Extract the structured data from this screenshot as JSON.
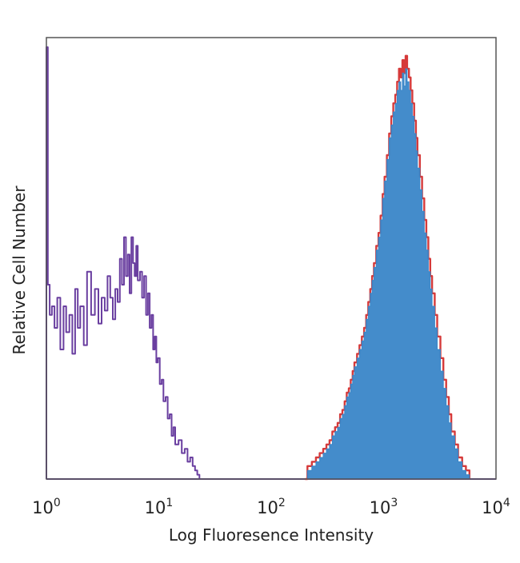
{
  "chart_data": {
    "type": "area",
    "xscale": "log",
    "xlim": [
      1,
      10000
    ],
    "ylim": [
      0,
      100
    ],
    "grid": false,
    "legend": "none",
    "xlabel": "Log Fluoresence Intensity",
    "ylabel": "Relative Cell Number",
    "xticks": [
      {
        "base": "10",
        "exp": "0",
        "value": 1
      },
      {
        "base": "10",
        "exp": "1",
        "value": 10
      },
      {
        "base": "10",
        "exp": "2",
        "value": 100
      },
      {
        "base": "10",
        "exp": "3",
        "value": 1000
      },
      {
        "base": "10",
        "exp": "4",
        "value": 10000
      }
    ],
    "series": [
      {
        "color": "#6a3fa0",
        "style": "line",
        "x": [
          1,
          1.03,
          1.07,
          1.12,
          1.18,
          1.25,
          1.33,
          1.42,
          1.5,
          1.6,
          1.7,
          1.8,
          1.9,
          2.0,
          2.15,
          2.3,
          2.5,
          2.7,
          2.9,
          3.1,
          3.3,
          3.5,
          3.7,
          3.9,
          4.1,
          4.3,
          4.5,
          4.7,
          4.9,
          5.1,
          5.3,
          5.5,
          5.7,
          5.9,
          6.1,
          6.3,
          6.5,
          6.8,
          7.1,
          7.4,
          7.7,
          8.0,
          8.3,
          8.6,
          8.9,
          9.2,
          9.5,
          9.8,
          10.2,
          10.6,
          11,
          11.5,
          12,
          12.5,
          13,
          13.5,
          14,
          15,
          16,
          17,
          18,
          19,
          20,
          21,
          22,
          23
        ],
        "y": [
          100,
          45,
          38,
          40,
          35,
          42,
          30,
          40,
          34,
          38,
          29,
          44,
          35,
          40,
          31,
          48,
          38,
          44,
          36,
          42,
          39,
          47,
          42,
          37,
          44,
          41,
          51,
          45,
          56,
          47,
          52,
          43,
          56,
          50,
          47,
          54,
          46,
          48,
          42,
          47,
          38,
          43,
          35,
          38,
          30,
          33,
          27,
          28,
          22,
          23,
          18,
          19,
          14,
          15,
          10,
          12,
          8,
          9,
          6,
          7,
          4,
          5,
          3,
          2,
          1,
          0
        ]
      },
      {
        "color": "#d63a3a",
        "style": "line",
        "x": [
          200,
          210,
          230,
          250,
          270,
          290,
          310,
          330,
          350,
          370,
          390,
          410,
          430,
          450,
          470,
          490,
          510,
          530,
          550,
          580,
          610,
          640,
          670,
          700,
          730,
          760,
          790,
          820,
          860,
          900,
          940,
          980,
          1020,
          1070,
          1120,
          1170,
          1220,
          1270,
          1320,
          1370,
          1420,
          1470,
          1520,
          1570,
          1620,
          1680,
          1740,
          1800,
          1870,
          1940,
          2000,
          2100,
          2200,
          2300,
          2400,
          2500,
          2600,
          2700,
          2850,
          3000,
          3200,
          3400,
          3600,
          3800,
          4000,
          4300,
          4600,
          5000,
          5400,
          5800
        ],
        "y": [
          0,
          3,
          4,
          5,
          6,
          7,
          8,
          9,
          11,
          12,
          13,
          15,
          16,
          18,
          20,
          21,
          23,
          25,
          27,
          29,
          31,
          33,
          35,
          38,
          41,
          44,
          47,
          50,
          54,
          57,
          61,
          66,
          70,
          75,
          80,
          84,
          87,
          89,
          92,
          95,
          93,
          97,
          94,
          98,
          95,
          93,
          90,
          87,
          83,
          79,
          75,
          70,
          65,
          60,
          56,
          51,
          47,
          43,
          38,
          33,
          28,
          23,
          19,
          15,
          11,
          8,
          5,
          3,
          2,
          0
        ]
      },
      {
        "color": "#3a86c8",
        "style": "filled",
        "x": [
          200,
          210,
          230,
          250,
          270,
          290,
          310,
          330,
          350,
          370,
          390,
          410,
          430,
          450,
          470,
          490,
          510,
          530,
          550,
          580,
          610,
          640,
          670,
          700,
          730,
          760,
          790,
          820,
          860,
          900,
          940,
          980,
          1020,
          1070,
          1120,
          1170,
          1220,
          1270,
          1320,
          1370,
          1420,
          1470,
          1520,
          1570,
          1620,
          1680,
          1740,
          1800,
          1870,
          1940,
          2000,
          2100,
          2200,
          2300,
          2400,
          2500,
          2600,
          2700,
          2850,
          3000,
          3200,
          3400,
          3600,
          3800,
          4000,
          4300,
          4600,
          5000,
          5400,
          5800
        ],
        "y": [
          0,
          2,
          3,
          4,
          5,
          6,
          7,
          8,
          10,
          11,
          12,
          14,
          15,
          17,
          19,
          20,
          22,
          24,
          26,
          28,
          30,
          32,
          34,
          37,
          40,
          43,
          46,
          49,
          53,
          56,
          60,
          65,
          69,
          74,
          79,
          82,
          85,
          87,
          90,
          92,
          90,
          94,
          91,
          95,
          92,
          90,
          87,
          84,
          80,
          76,
          72,
          67,
          62,
          57,
          53,
          48,
          44,
          40,
          35,
          30,
          25,
          21,
          17,
          13,
          10,
          7,
          4,
          2,
          1,
          0
        ]
      }
    ]
  }
}
